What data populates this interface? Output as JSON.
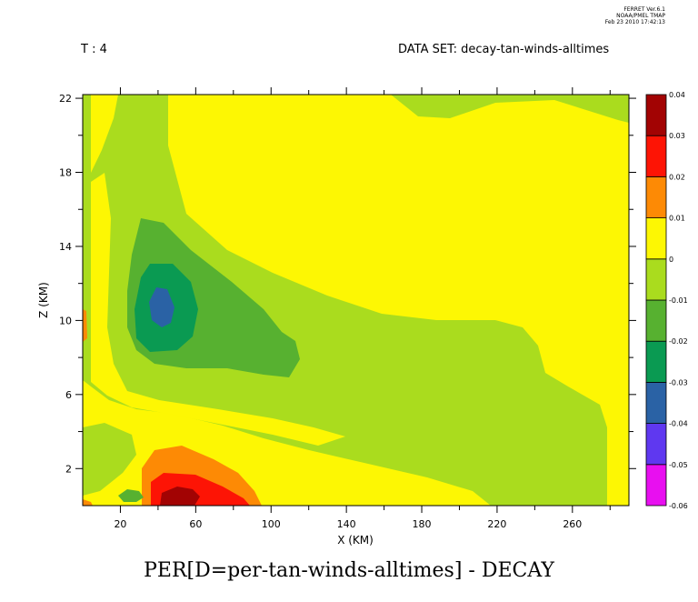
{
  "header": {
    "stamp_lines": [
      "FERRET  Ver.6.1",
      "NOAA/PMEL TMAP",
      "Feb 23 2010 17:42:13"
    ],
    "time_label": "T : 4",
    "dataset_label": "DATA SET: decay-tan-winds-alltimes"
  },
  "footer": {
    "title": "PER[D=per-tan-winds-alltimes] - DECAY"
  },
  "chart_data": {
    "type": "heatmap",
    "title": "PER[D=per-tan-winds-alltimes] - DECAY",
    "xlabel": "X (KM)",
    "ylabel": "Z (KM)",
    "xlim": [
      0,
      290
    ],
    "ylim": [
      0,
      22.2
    ],
    "x_ticks": [
      20,
      60,
      100,
      140,
      180,
      220,
      260
    ],
    "y_ticks": [
      2,
      6,
      10,
      14,
      18,
      22
    ],
    "grid": false,
    "legend": "right colorbar",
    "colorbar": {
      "levels": [
        -0.06,
        -0.05,
        -0.04,
        -0.03,
        -0.02,
        -0.01,
        0,
        0.01,
        0.02,
        0.03,
        0.04
      ],
      "tick_labels": [
        "-0.06",
        "-0.05",
        "-0.04",
        "-0.03",
        "-0.02",
        "-0.01",
        "0",
        "0.01",
        "0.02",
        "0.03",
        "0.04"
      ],
      "colors": [
        "#e80ff0",
        "#5f38f0",
        "#2a62a5",
        "#0a9a52",
        "#57b130",
        "#aadc1e",
        "#fdf703",
        "#fd8a05",
        "#fd1405",
        "#a20303"
      ]
    },
    "regions": [
      {
        "level": "0 to 0.01",
        "color": "#fdf703",
        "description": "background"
      },
      {
        "level": "-0.01 to 0",
        "color": "#aadc1e",
        "description": "broad weak negative band from upper-left sweeping to lower-right"
      },
      {
        "level": "-0.02 to -0.01",
        "color": "#57b130",
        "description": "region centered near x=50, z=11 extending to x=115"
      },
      {
        "level": "-0.03 to -0.02",
        "color": "#0a9a52",
        "description": "core near x=45, z=11"
      },
      {
        "level": "-0.04 to -0.03",
        "color": "#2a62a5",
        "description": "minimum near x=40, z=11"
      },
      {
        "level": "0.01 to 0.02",
        "color": "#fd8a05",
        "description": "near surface x=30-80"
      },
      {
        "level": "0.02 to 0.03",
        "color": "#fd1405",
        "description": "near surface x=40-75"
      },
      {
        "level": "0.03 to 0.04",
        "color": "#a20303",
        "description": "maximum near x=50, z=0.5"
      }
    ]
  }
}
